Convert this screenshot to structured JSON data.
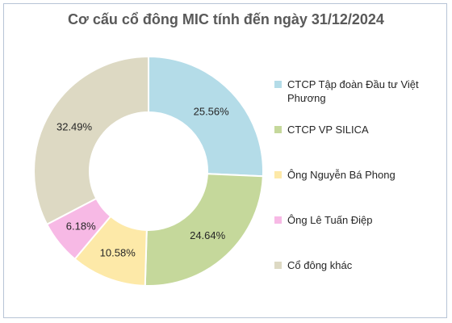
{
  "chart_data": {
    "type": "donut",
    "title": "Cơ cấu cổ đông MIC tính đến ngày 31/12/2024",
    "legend_position": "right",
    "slices": [
      {
        "name": "CTCP Tập đoàn Đầu tư Việt Phương",
        "value": 25.56,
        "label": "25.56%",
        "color": "#b4dce8"
      },
      {
        "name": "CTCP VP SILICA",
        "value": 24.64,
        "label": "24.64%",
        "color": "#c5d89b"
      },
      {
        "name": "Ông Nguyễn Bá Phong",
        "value": 10.58,
        "label": "10.58%",
        "color": "#fde9a8"
      },
      {
        "name": "Ông Lê Tuấn Điệp",
        "value": 6.18,
        "label": "6.18%",
        "color": "#f7b9e5"
      },
      {
        "name": "Cổ đông khác",
        "value": 32.49,
        "label": "32.49%",
        "color": "#ddd9c3"
      }
    ]
  }
}
